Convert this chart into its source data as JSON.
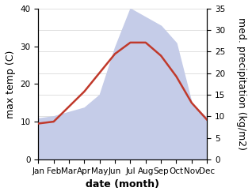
{
  "months": [
    "Jan",
    "Feb",
    "Mar",
    "Apr",
    "May",
    "Jun",
    "Jul",
    "Aug",
    "Sep",
    "Oct",
    "Nov",
    "Dec"
  ],
  "max_temp": [
    9.5,
    10.0,
    14.0,
    18.0,
    23.0,
    28.0,
    31.0,
    31.0,
    27.5,
    22.0,
    15.0,
    10.5
  ],
  "precipitation": [
    9.5,
    10.0,
    11.0,
    12.0,
    15.0,
    26.0,
    35.0,
    33.0,
    31.0,
    27.0,
    13.0,
    9.5
  ],
  "temp_color": "#c0392b",
  "precip_fill_color": "#c5cce8",
  "temp_ylim": [
    0,
    40
  ],
  "precip_ylim": [
    0,
    35
  ],
  "ylabel_left": "max temp (C)",
  "ylabel_right": "med. precipitation (kg/m2)",
  "xlabel": "date (month)",
  "temp_yticks": [
    0,
    10,
    20,
    30,
    40
  ],
  "precip_yticks": [
    0,
    5,
    10,
    15,
    20,
    25,
    30,
    35
  ],
  "xlabel_fontsize": 9,
  "ylabel_fontsize": 9,
  "tick_fontsize": 7.5,
  "line_width": 1.8
}
